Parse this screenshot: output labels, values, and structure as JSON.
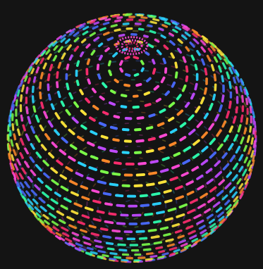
{
  "scene": {
    "background_color": "#141414",
    "subject": "rainbow-dotted-sphere",
    "palette": [
      "#ff2d6f",
      "#ff8a2a",
      "#ffe63a",
      "#7dff4a",
      "#2dffb0",
      "#2ad4ff",
      "#4a6bff",
      "#c04aff",
      "#ff4ad8"
    ]
  }
}
